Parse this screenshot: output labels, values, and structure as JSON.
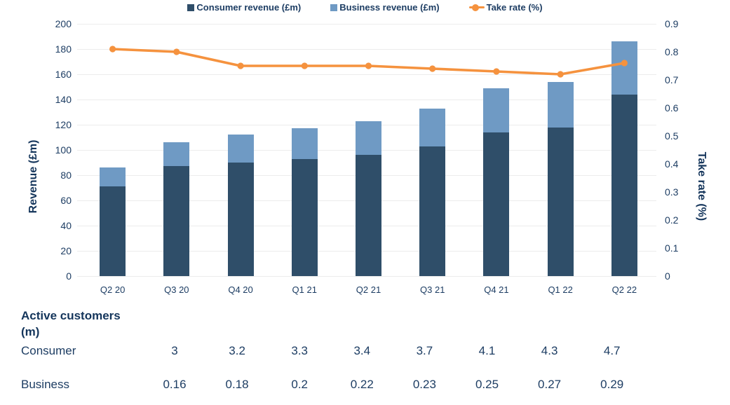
{
  "chart_data": {
    "type": "combo (stacked bars + line on secondary axis)",
    "categories": [
      "Q2 20",
      "Q3 20",
      "Q4 20",
      "Q1 21",
      "Q2 21",
      "Q3 21",
      "Q4 21",
      "Q1 22",
      "Q2 22"
    ],
    "series": [
      {
        "name": "Consumer revenue (£m)",
        "type": "bar",
        "stacked": true,
        "axis": "left",
        "color": "#2F4E69",
        "values": [
          71,
          87,
          90,
          93,
          96,
          103,
          114,
          118,
          144
        ]
      },
      {
        "name": "Business revenue (£m)",
        "type": "bar",
        "stacked": true,
        "axis": "left",
        "color": "#6F9AC4",
        "values": [
          15,
          19,
          22,
          24,
          27,
          30,
          35,
          36,
          42
        ]
      },
      {
        "name": "Take rate (%)",
        "type": "line",
        "axis": "right",
        "color": "#F5923E",
        "values": [
          0.81,
          0.8,
          0.75,
          0.75,
          0.75,
          0.74,
          0.73,
          0.72,
          0.76
        ]
      }
    ],
    "left_axis": {
      "label": "Revenue (£m)",
      "min": 0,
      "max": 200,
      "step": 20
    },
    "right_axis": {
      "label": "Take rate (%)",
      "min": 0,
      "max": 0.9,
      "step": 0.1
    },
    "grid": true,
    "legend_position": "top"
  },
  "table": {
    "header": "Active customers (m)",
    "rows": [
      {
        "label": "Consumer",
        "values": [
          "",
          "3",
          "3.2",
          "3.3",
          "3.4",
          "3.7",
          "4.1",
          "4.3",
          "4.7"
        ]
      },
      {
        "label": "Business",
        "values": [
          "",
          "0.16",
          "0.18",
          "0.2",
          "0.22",
          "0.23",
          "0.25",
          "0.27",
          "0.29"
        ]
      }
    ]
  },
  "colors": {
    "consumer_bar": "#2F4E69",
    "business_bar": "#6F9AC4",
    "take_rate_line": "#F5923E",
    "text_navy": "#1D3D63",
    "gridline": "#ECECEC",
    "background": "#FFFFFF"
  }
}
